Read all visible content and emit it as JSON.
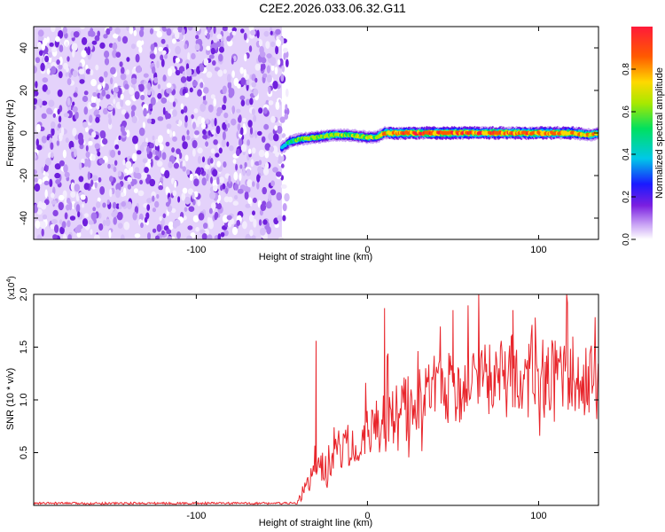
{
  "title": "C2E2.2026.033.06.32.G11",
  "chart_data": [
    {
      "type": "heatmap",
      "xlabel": "Height of straight line (km)",
      "ylabel": "Frequency (Hz)",
      "xlim": [
        -195,
        135
      ],
      "ylim": [
        -50,
        50
      ],
      "x_ticks": [
        -100,
        0,
        100
      ],
      "y_ticks": [
        -40,
        -20,
        0,
        20,
        40
      ],
      "colorbar": {
        "label": "Normalized spectral amplitude",
        "range": [
          0,
          1
        ],
        "ticks": [
          "0.0",
          "0.2",
          "0.4",
          "0.6",
          "0.8"
        ]
      },
      "noise_region": {
        "x_from": -195,
        "x_to": -50,
        "freq_from": -50,
        "freq_to": 50,
        "amplitude": "low"
      },
      "signal_ridge": {
        "x": [
          -50,
          -45,
          -40,
          -30,
          -20,
          -10,
          0,
          5,
          10,
          20,
          40,
          60,
          80,
          100,
          110,
          120,
          130,
          135
        ],
        "freq": [
          -7,
          -4,
          -3,
          -2,
          -1,
          -1,
          -2,
          -2,
          0,
          0,
          0,
          0,
          0,
          0,
          0,
          0,
          -1,
          0
        ],
        "peak_amplitude": [
          0.45,
          0.55,
          0.6,
          0.65,
          0.7,
          0.7,
          0.7,
          0.65,
          0.85,
          0.9,
          0.95,
          0.95,
          0.9,
          0.95,
          0.9,
          0.85,
          0.8,
          0.75
        ]
      }
    },
    {
      "type": "line",
      "xlabel": "Height of straight line (km)",
      "ylabel": "SNR (10 * v/v)",
      "y_scale_label": "(x10",
      "y_scale_exp": "4",
      "y_scale_close": ")",
      "xlim": [
        -195,
        135
      ],
      "ylim": [
        0,
        2.0
      ],
      "x_ticks": [
        -100,
        0,
        100
      ],
      "y_ticks": [
        0.5,
        1.0,
        1.5,
        2.0
      ],
      "series_color": "#e8252b",
      "trend": {
        "x": [
          -195,
          -40,
          -38,
          -30,
          -20,
          -10,
          0,
          10,
          20,
          30,
          40,
          50,
          60,
          70,
          80,
          90,
          100,
          110,
          120,
          130,
          135
        ],
        "y": [
          0.02,
          0.02,
          0.15,
          0.3,
          0.45,
          0.58,
          0.68,
          0.8,
          0.92,
          1.0,
          1.08,
          1.14,
          1.18,
          1.2,
          1.22,
          1.22,
          1.22,
          1.2,
          1.2,
          1.2,
          1.18
        ]
      },
      "peaks": [
        {
          "x": -30,
          "y": 1.56
        },
        {
          "x": 10,
          "y": 1.87
        },
        {
          "x": 65,
          "y": 2.0
        },
        {
          "x": 50,
          "y": 1.85
        },
        {
          "x": 85,
          "y": 1.85
        },
        {
          "x": 98,
          "y": 1.78
        },
        {
          "x": 120,
          "y": 1.6
        }
      ]
    }
  ]
}
